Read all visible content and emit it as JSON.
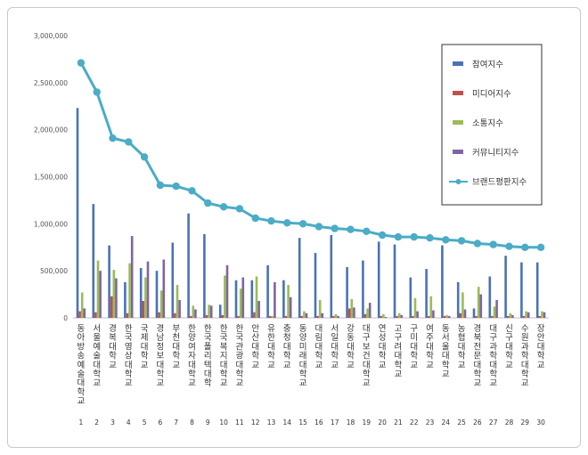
{
  "chart_data": {
    "type": "bar",
    "title": "",
    "xlabel": "",
    "ylabel": "",
    "ylim": [
      0,
      3000000
    ],
    "yticks": [
      "0",
      "500,000",
      "1,000,000",
      "1,500,000",
      "2,000,000",
      "2,500,000",
      "3,000,000"
    ],
    "grid": false,
    "legend_position": "top-right",
    "categories": [
      "동아방송예술대학교",
      "서울예술대학교",
      "경복대학교",
      "한국영상대학교",
      "국제대학교",
      "경남정보대학교",
      "부천대학교",
      "한양여자대학교",
      "한국폴리텍대학",
      "한국복지대학교",
      "한국관광대학교",
      "안산대학교",
      "유한대학교",
      "충청대학교",
      "동양미래대학교",
      "대림대학교",
      "서일대학교",
      "강동대학교",
      "대구보건대학교",
      "연성대학교",
      "고구려대학교",
      "구미대학교",
      "여주대학교",
      "동서울대학교",
      "농협대학교",
      "경북전문대학교",
      "대구과학대학교",
      "신구대학교",
      "수원과학대학교",
      "장안대학교"
    ],
    "ranks": [
      "1",
      "2",
      "3",
      "4",
      "5",
      "6",
      "7",
      "8",
      "9",
      "10",
      "11",
      "12",
      "13",
      "14",
      "15",
      "16",
      "17",
      "18",
      "19",
      "20",
      "21",
      "22",
      "23",
      "24",
      "25",
      "26",
      "27",
      "28",
      "29",
      "30"
    ],
    "series": [
      {
        "name": "참여지수",
        "color": "#4a72b8",
        "kind": "bar",
        "values": [
          2230000,
          1210000,
          770000,
          380000,
          530000,
          500000,
          800000,
          1110000,
          890000,
          140000,
          400000,
          400000,
          560000,
          400000,
          850000,
          690000,
          880000,
          540000,
          610000,
          810000,
          780000,
          430000,
          520000,
          770000,
          380000,
          100000,
          440000,
          660000,
          590000,
          590000
        ]
      },
      {
        "name": "미디어지수",
        "color": "#c0504d",
        "kind": "bar",
        "values": [
          70000,
          60000,
          230000,
          50000,
          180000,
          60000,
          50000,
          20000,
          30000,
          30000,
          20000,
          60000,
          20000,
          20000,
          20000,
          20000,
          20000,
          100000,
          40000,
          20000,
          20000,
          20000,
          20000,
          20000,
          50000,
          20000,
          20000,
          20000,
          20000,
          20000
        ]
      },
      {
        "name": "소통지수",
        "color": "#9bbb59",
        "kind": "bar",
        "values": [
          270000,
          610000,
          510000,
          580000,
          430000,
          290000,
          350000,
          130000,
          140000,
          450000,
          310000,
          440000,
          20000,
          350000,
          70000,
          190000,
          40000,
          200000,
          100000,
          40000,
          50000,
          210000,
          230000,
          30000,
          270000,
          330000,
          120000,
          50000,
          70000,
          70000
        ]
      },
      {
        "name": "커뮤니티지수",
        "color": "#8064a2",
        "kind": "bar",
        "values": [
          100000,
          500000,
          420000,
          870000,
          600000,
          620000,
          190000,
          90000,
          130000,
          560000,
          430000,
          180000,
          380000,
          220000,
          50000,
          50000,
          20000,
          110000,
          160000,
          10000,
          30000,
          70000,
          80000,
          20000,
          90000,
          250000,
          190000,
          30000,
          60000,
          60000
        ]
      },
      {
        "name": "브랜드평판지수",
        "color": "#4bacc6",
        "kind": "line",
        "values": [
          2710000,
          2400000,
          1910000,
          1870000,
          1710000,
          1410000,
          1400000,
          1350000,
          1220000,
          1180000,
          1160000,
          1060000,
          1030000,
          1010000,
          1000000,
          970000,
          950000,
          940000,
          920000,
          880000,
          860000,
          860000,
          850000,
          830000,
          820000,
          790000,
          780000,
          760000,
          750000,
          750000
        ]
      }
    ]
  }
}
